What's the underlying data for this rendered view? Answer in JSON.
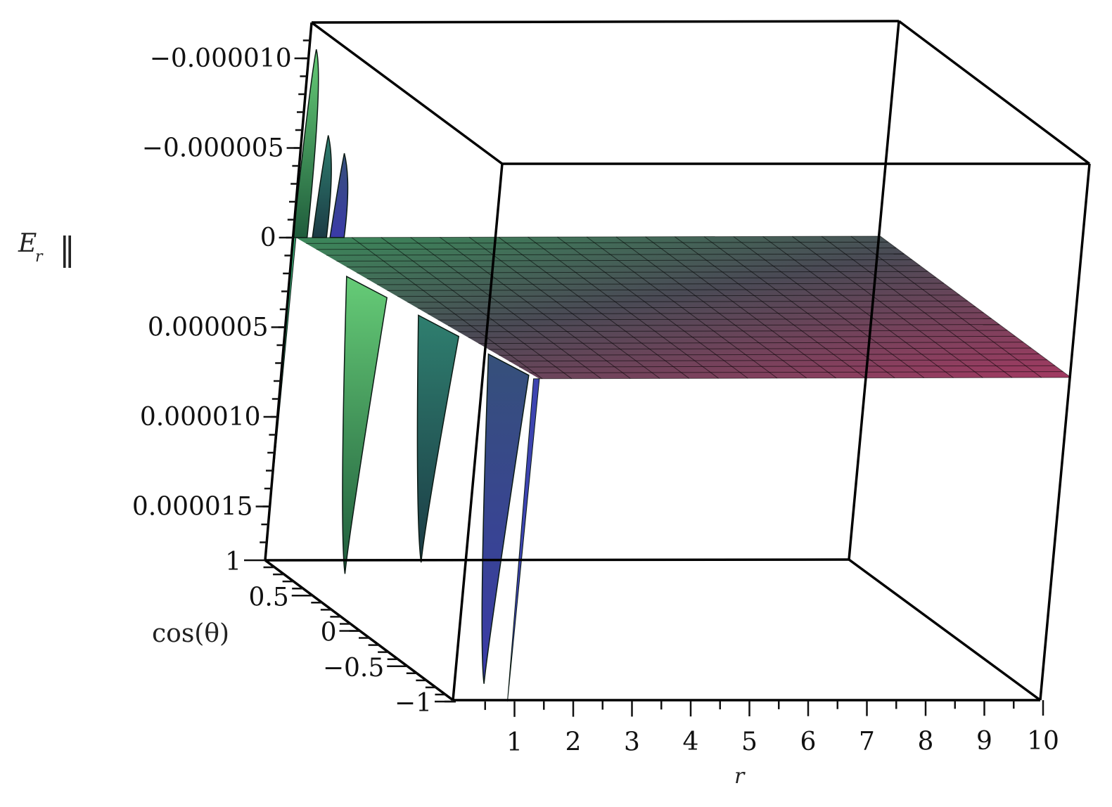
{
  "chart_data": {
    "type": "surface3d",
    "z_axis": {
      "label_main": "E",
      "label_sub": "r",
      "label_sub_color": "#cc33cc",
      "norm_mark": "‖",
      "reversed": true,
      "range": [
        -1.2e-05,
        1.8e-05
      ],
      "ticks": [
        {
          "value": -1e-05,
          "label": "−0.000010"
        },
        {
          "value": -5e-06,
          "label": "−0.000005"
        },
        {
          "value": 0,
          "label": "0"
        },
        {
          "value": 5e-06,
          "label": "0.000005"
        },
        {
          "value": 1e-05,
          "label": "0.000010"
        },
        {
          "value": 1.5e-05,
          "label": "0.000015"
        }
      ]
    },
    "y_axis": {
      "label": "cos(θ)",
      "range": [
        -1,
        1
      ],
      "ticks": [
        {
          "value": 1,
          "label": "1"
        },
        {
          "value": 0.5,
          "label": "0.5"
        },
        {
          "value": 0,
          "label": "0"
        },
        {
          "value": -0.5,
          "label": "−0.5"
        },
        {
          "value": -1,
          "label": "−1"
        }
      ]
    },
    "x_axis": {
      "label": "r",
      "range": [
        0,
        10
      ],
      "ticks": [
        {
          "value": 1,
          "label": "1"
        },
        {
          "value": 2,
          "label": "2"
        },
        {
          "value": 3,
          "label": "3"
        },
        {
          "value": 4,
          "label": "4"
        },
        {
          "value": 5,
          "label": "5"
        },
        {
          "value": 6,
          "label": "6"
        },
        {
          "value": 7,
          "label": "7"
        },
        {
          "value": 8,
          "label": "8"
        },
        {
          "value": 9,
          "label": "9"
        },
        {
          "value": 10,
          "label": "10"
        }
      ]
    },
    "surface": {
      "description_values": "E_r vs r and cos(theta): oscillating spikes near small r, flat at 0 for r > ~1",
      "peaks": [
        {
          "r": 0.12,
          "amplitude": -1.05e-05,
          "trough": 1.6e-05
        },
        {
          "r": 0.45,
          "amplitude": -5.7e-06,
          "trough": 1.32e-05
        },
        {
          "r": 0.75,
          "amplitude": -4.7e-06,
          "trough": 1.78e-05
        }
      ],
      "flat_value": 0,
      "colors": {
        "near_r0_top": "#3fae6a",
        "near_r0_bottom": "#2a2f80",
        "far_top": "#b9a36a",
        "far_bottom": "#a03060"
      }
    },
    "grid": false,
    "legend": "none"
  }
}
